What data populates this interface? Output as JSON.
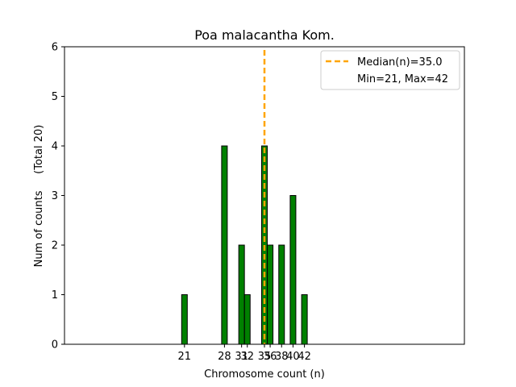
{
  "chart_data": {
    "type": "bar",
    "title": "Poa malacantha Kom.",
    "xlabel": "Chromosome count (n)",
    "ylabel": "Num of counts     (Total 20)",
    "xlim": [
      0,
      70
    ],
    "ylim": [
      0,
      6
    ],
    "yticks": [
      0,
      1,
      2,
      3,
      4,
      5,
      6
    ],
    "xticks": [
      21,
      28,
      31,
      32,
      35,
      36,
      38,
      40,
      42
    ],
    "bars": [
      {
        "x": 21,
        "count": 1
      },
      {
        "x": 28,
        "count": 4
      },
      {
        "x": 31,
        "count": 2
      },
      {
        "x": 32,
        "count": 1
      },
      {
        "x": 35,
        "count": 4
      },
      {
        "x": 36,
        "count": 2
      },
      {
        "x": 38,
        "count": 2
      },
      {
        "x": 40,
        "count": 3
      },
      {
        "x": 42,
        "count": 1
      }
    ],
    "median": 35.0,
    "legend": {
      "position": "top-right",
      "median_label": "Median(n)=35.0",
      "range_label": "Min=21, Max=42"
    },
    "colors": {
      "bar": "#008000",
      "bar_edge": "#000000",
      "median_line": "#FFA500"
    }
  }
}
